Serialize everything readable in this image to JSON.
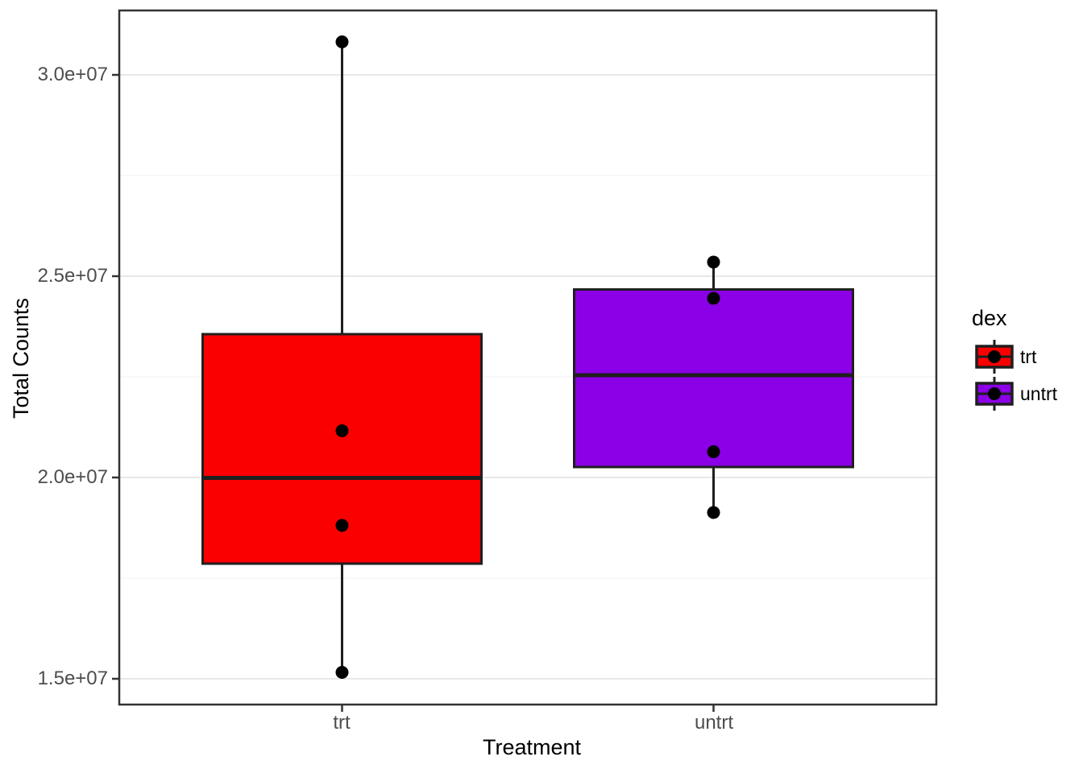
{
  "chart_data": {
    "type": "boxplot",
    "title": "",
    "xlabel": "Treatment",
    "ylabel": "Total Counts",
    "categories": [
      "trt",
      "untrt"
    ],
    "y_ticks": [
      {
        "value": 30000000,
        "label": "3.0e+07"
      },
      {
        "value": 25000000,
        "label": "2.5e+07"
      },
      {
        "value": 20000000,
        "label": "2.0e+07"
      },
      {
        "value": 15000000,
        "label": "1.5e+07"
      }
    ],
    "y_minor_gridlines": [
      17500000,
      22500000,
      27500000
    ],
    "ylim": [
      14360000,
      31600000
    ],
    "grid": true,
    "panel_border_color": "#333333",
    "grid_major_color": "#e8e8e8",
    "grid_minor_color": "#f3f3f3",
    "box_line_color": "#1f1f1f",
    "point_color": "#000000",
    "tick_color": "#333333",
    "series": [
      {
        "name": "trt",
        "fill": "#fb0000",
        "stats": {
          "whisker_low": 15160000,
          "q1": 17860000,
          "median": 19990000,
          "q3": 23560000,
          "whisker_high": 30820000
        },
        "points": [
          15160000,
          18810000,
          21160000,
          30820000
        ]
      },
      {
        "name": "untrt",
        "fill": "#8b00e6",
        "stats": {
          "whisker_low": 19130000,
          "q1": 20260000,
          "median": 22540000,
          "q3": 24670000,
          "whisker_high": 25350000
        },
        "points": [
          19130000,
          20640000,
          24450000,
          25350000
        ]
      }
    ],
    "legend": {
      "title": "dex",
      "position": "right",
      "entries": [
        {
          "label": "trt",
          "fill": "#fb0000"
        },
        {
          "label": "untrt",
          "fill": "#8b00e6"
        }
      ]
    }
  }
}
